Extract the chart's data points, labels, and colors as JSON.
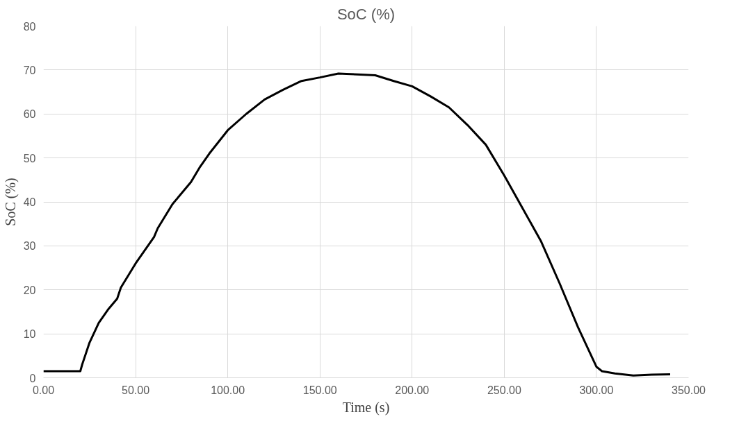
{
  "chart_data": {
    "type": "line",
    "title": "SoC (%)",
    "xlabel": "Time (s)",
    "ylabel": "SoC (%)",
    "x": [
      0,
      20,
      21,
      25,
      30,
      35,
      40,
      42,
      50,
      60,
      62,
      70,
      80,
      85,
      90,
      100,
      110,
      120,
      130,
      140,
      150,
      160,
      180,
      190,
      200,
      210,
      220,
      230,
      240,
      250,
      260,
      270,
      280,
      290,
      300,
      303,
      310,
      320,
      330,
      340
    ],
    "series": [
      {
        "color": "#000000",
        "values": [
          1.5,
          1.5,
          3,
          8,
          12.5,
          15.5,
          18,
          20.5,
          26,
          32,
          34,
          39.5,
          44.5,
          48,
          51,
          56.3,
          60,
          63.3,
          65.5,
          67.5,
          68.3,
          69.2,
          68.8,
          67.5,
          66.3,
          64,
          61.5,
          57.5,
          53,
          46,
          38.5,
          31,
          21.5,
          11.5,
          2.5,
          1.5,
          1,
          0.5,
          0.7,
          0.8
        ]
      }
    ],
    "xlim": [
      0,
      350
    ],
    "xticks": [
      {
        "value": 0,
        "label": "0.00"
      },
      {
        "value": 50,
        "label": "50.00"
      },
      {
        "value": 100,
        "label": "100.00"
      },
      {
        "value": 150,
        "label": "150.00"
      },
      {
        "value": 200,
        "label": "200.00"
      },
      {
        "value": 250,
        "label": "250.00"
      },
      {
        "value": 300,
        "label": "300.00"
      },
      {
        "value": 350,
        "label": "350.00"
      }
    ],
    "ylim": [
      0,
      80
    ],
    "yticks": [
      0,
      10,
      20,
      30,
      40,
      50,
      60,
      70,
      80
    ],
    "grid": true,
    "marker": "none",
    "line_style": "solid"
  }
}
